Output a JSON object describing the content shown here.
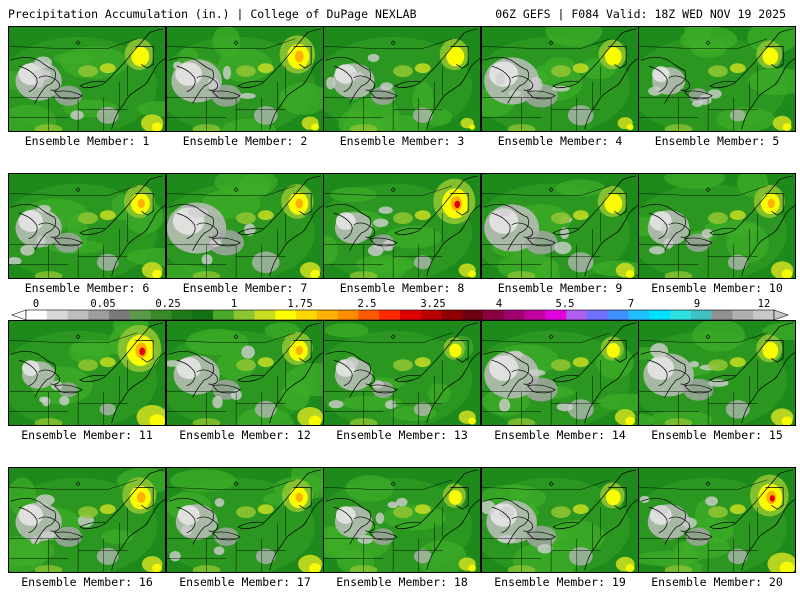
{
  "header": {
    "left": "Precipitation Accumulation (in.) | College of DuPage NEXLAB",
    "right": "06Z GEFS | F084 Valid: 18Z WED NOV 19 2025"
  },
  "colorbar": {
    "labels": [
      "0",
      "0.05",
      "0.25",
      "1",
      "1.75",
      "2.5",
      "3.25",
      "4",
      "5.5",
      "7",
      "9",
      "12"
    ],
    "colors": [
      "#ffffff",
      "#d9d9d9",
      "#bdbdbd",
      "#9e9e9e",
      "#7a7a7a",
      "#5a9a4a",
      "#3a8a2c",
      "#1f7a1c",
      "#147014",
      "#4aa82a",
      "#8cc432",
      "#c8dc22",
      "#ffff00",
      "#ffd800",
      "#ffb000",
      "#ff8c00",
      "#ff5a00",
      "#ff2a00",
      "#e00000",
      "#b80000",
      "#900000",
      "#700010",
      "#8a0040",
      "#a00070",
      "#c000a0",
      "#e000e0",
      "#b060f0",
      "#7070ff",
      "#4090ff",
      "#20c0ff",
      "#00e0ff",
      "#30e0e0",
      "#40c0c0",
      "#909090",
      "#b0b0b0",
      "#c8c8c8"
    ]
  },
  "members": [
    {
      "label": "Ensemble Member: 1",
      "ne": 0.55,
      "se": 0.35,
      "gray": 0.7
    },
    {
      "label": "Ensemble Member: 2",
      "ne": 0.75,
      "se": 0.2,
      "gray": 0.8
    },
    {
      "label": "Ensemble Member: 3",
      "ne": 0.55,
      "se": 0.1,
      "gray": 0.6
    },
    {
      "label": "Ensemble Member: 4",
      "ne": 0.5,
      "se": 0.15,
      "gray": 0.9
    },
    {
      "label": "Ensemble Member: 5",
      "ne": 0.45,
      "se": 0.25,
      "gray": 0.4
    },
    {
      "label": "Ensemble Member: 6",
      "ne": 0.6,
      "se": 0.3,
      "gray": 0.7
    },
    {
      "label": "Ensemble Member: 7",
      "ne": 0.65,
      "se": 0.3,
      "gray": 1.0
    },
    {
      "label": "Ensemble Member: 8",
      "ne": 0.95,
      "se": 0.2,
      "gray": 0.5
    },
    {
      "label": "Ensemble Member: 9",
      "ne": 0.55,
      "se": 0.25,
      "gray": 0.9
    },
    {
      "label": "Ensemble Member: 10",
      "ne": 0.6,
      "se": 0.35,
      "gray": 0.6
    },
    {
      "label": "Ensemble Member: 11",
      "ne": 1.0,
      "se": 0.6,
      "gray": 0.4
    },
    {
      "label": "Ensemble Member: 12",
      "ne": 0.6,
      "se": 0.45,
      "gray": 0.7
    },
    {
      "label": "Ensemble Member: 13",
      "ne": 0.3,
      "se": 0.2,
      "gray": 0.5
    },
    {
      "label": "Ensemble Member: 14",
      "ne": 0.35,
      "se": 0.3,
      "gray": 0.9
    },
    {
      "label": "Ensemble Member: 15",
      "ne": 0.45,
      "se": 0.35,
      "gray": 0.8
    },
    {
      "label": "Ensemble Member: 16",
      "ne": 0.7,
      "se": 0.3,
      "gray": 0.7
    },
    {
      "label": "Ensemble Member: 17",
      "ne": 0.6,
      "se": 0.4,
      "gray": 0.6
    },
    {
      "label": "Ensemble Member: 18",
      "ne": 0.35,
      "se": 0.2,
      "gray": 0.5
    },
    {
      "label": "Ensemble Member: 19",
      "ne": 0.4,
      "se": 0.25,
      "gray": 0.8
    },
    {
      "label": "Ensemble Member: 20",
      "ne": 0.85,
      "se": 0.55,
      "gray": 0.6
    }
  ]
}
